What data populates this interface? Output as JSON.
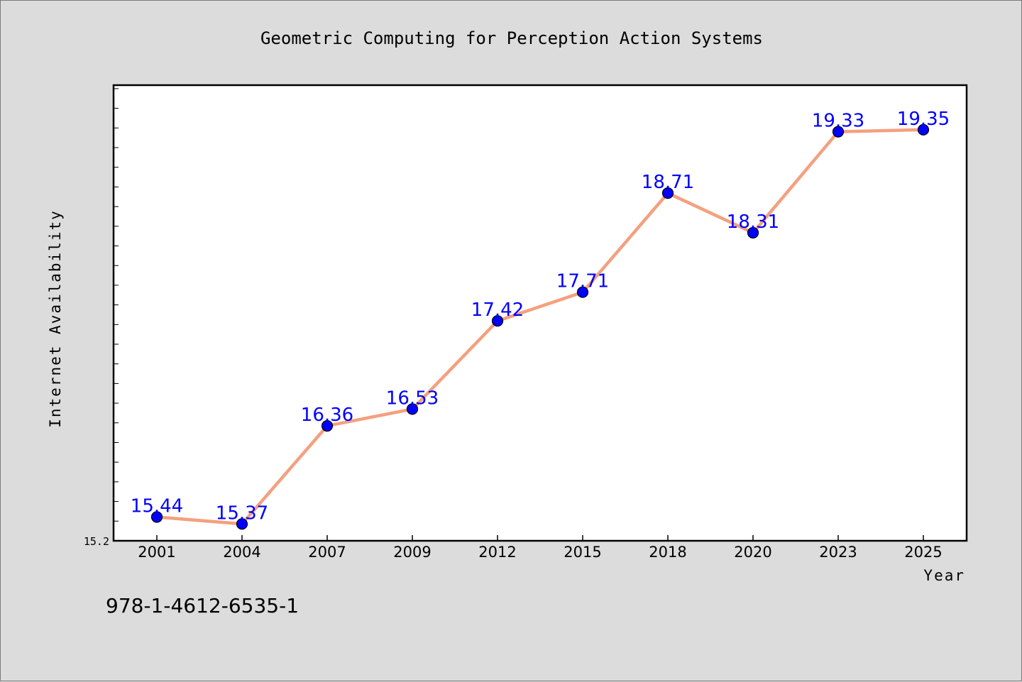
{
  "chart_data": {
    "type": "line",
    "title": "Geometric Computing for Perception Action Systems",
    "xlabel": "Year",
    "ylabel": "Internet Availability",
    "categories": [
      "2001",
      "2004",
      "2007",
      "2009",
      "2012",
      "2015",
      "2018",
      "2020",
      "2023",
      "2025"
    ],
    "series": [
      {
        "values": [
          15.44,
          15.37,
          16.36,
          16.53,
          17.42,
          17.71,
          18.71,
          18.31,
          19.33,
          19.35
        ],
        "line_color": "#f4a07e",
        "marker_color": "#0000ff"
      }
    ],
    "data_labels": [
      "15.44",
      "15.37",
      "16.36",
      "16.53",
      "17.42",
      "17.71",
      "18.71",
      "18.31",
      "19.33",
      "19.35"
    ],
    "ylim": [
      15.2,
      19.8
    ],
    "ytick_labels": [
      "15.2"
    ],
    "grid": false,
    "legend": "none",
    "label_color": "#0000ff",
    "footer_text": "978-1-4612-6535-1"
  }
}
